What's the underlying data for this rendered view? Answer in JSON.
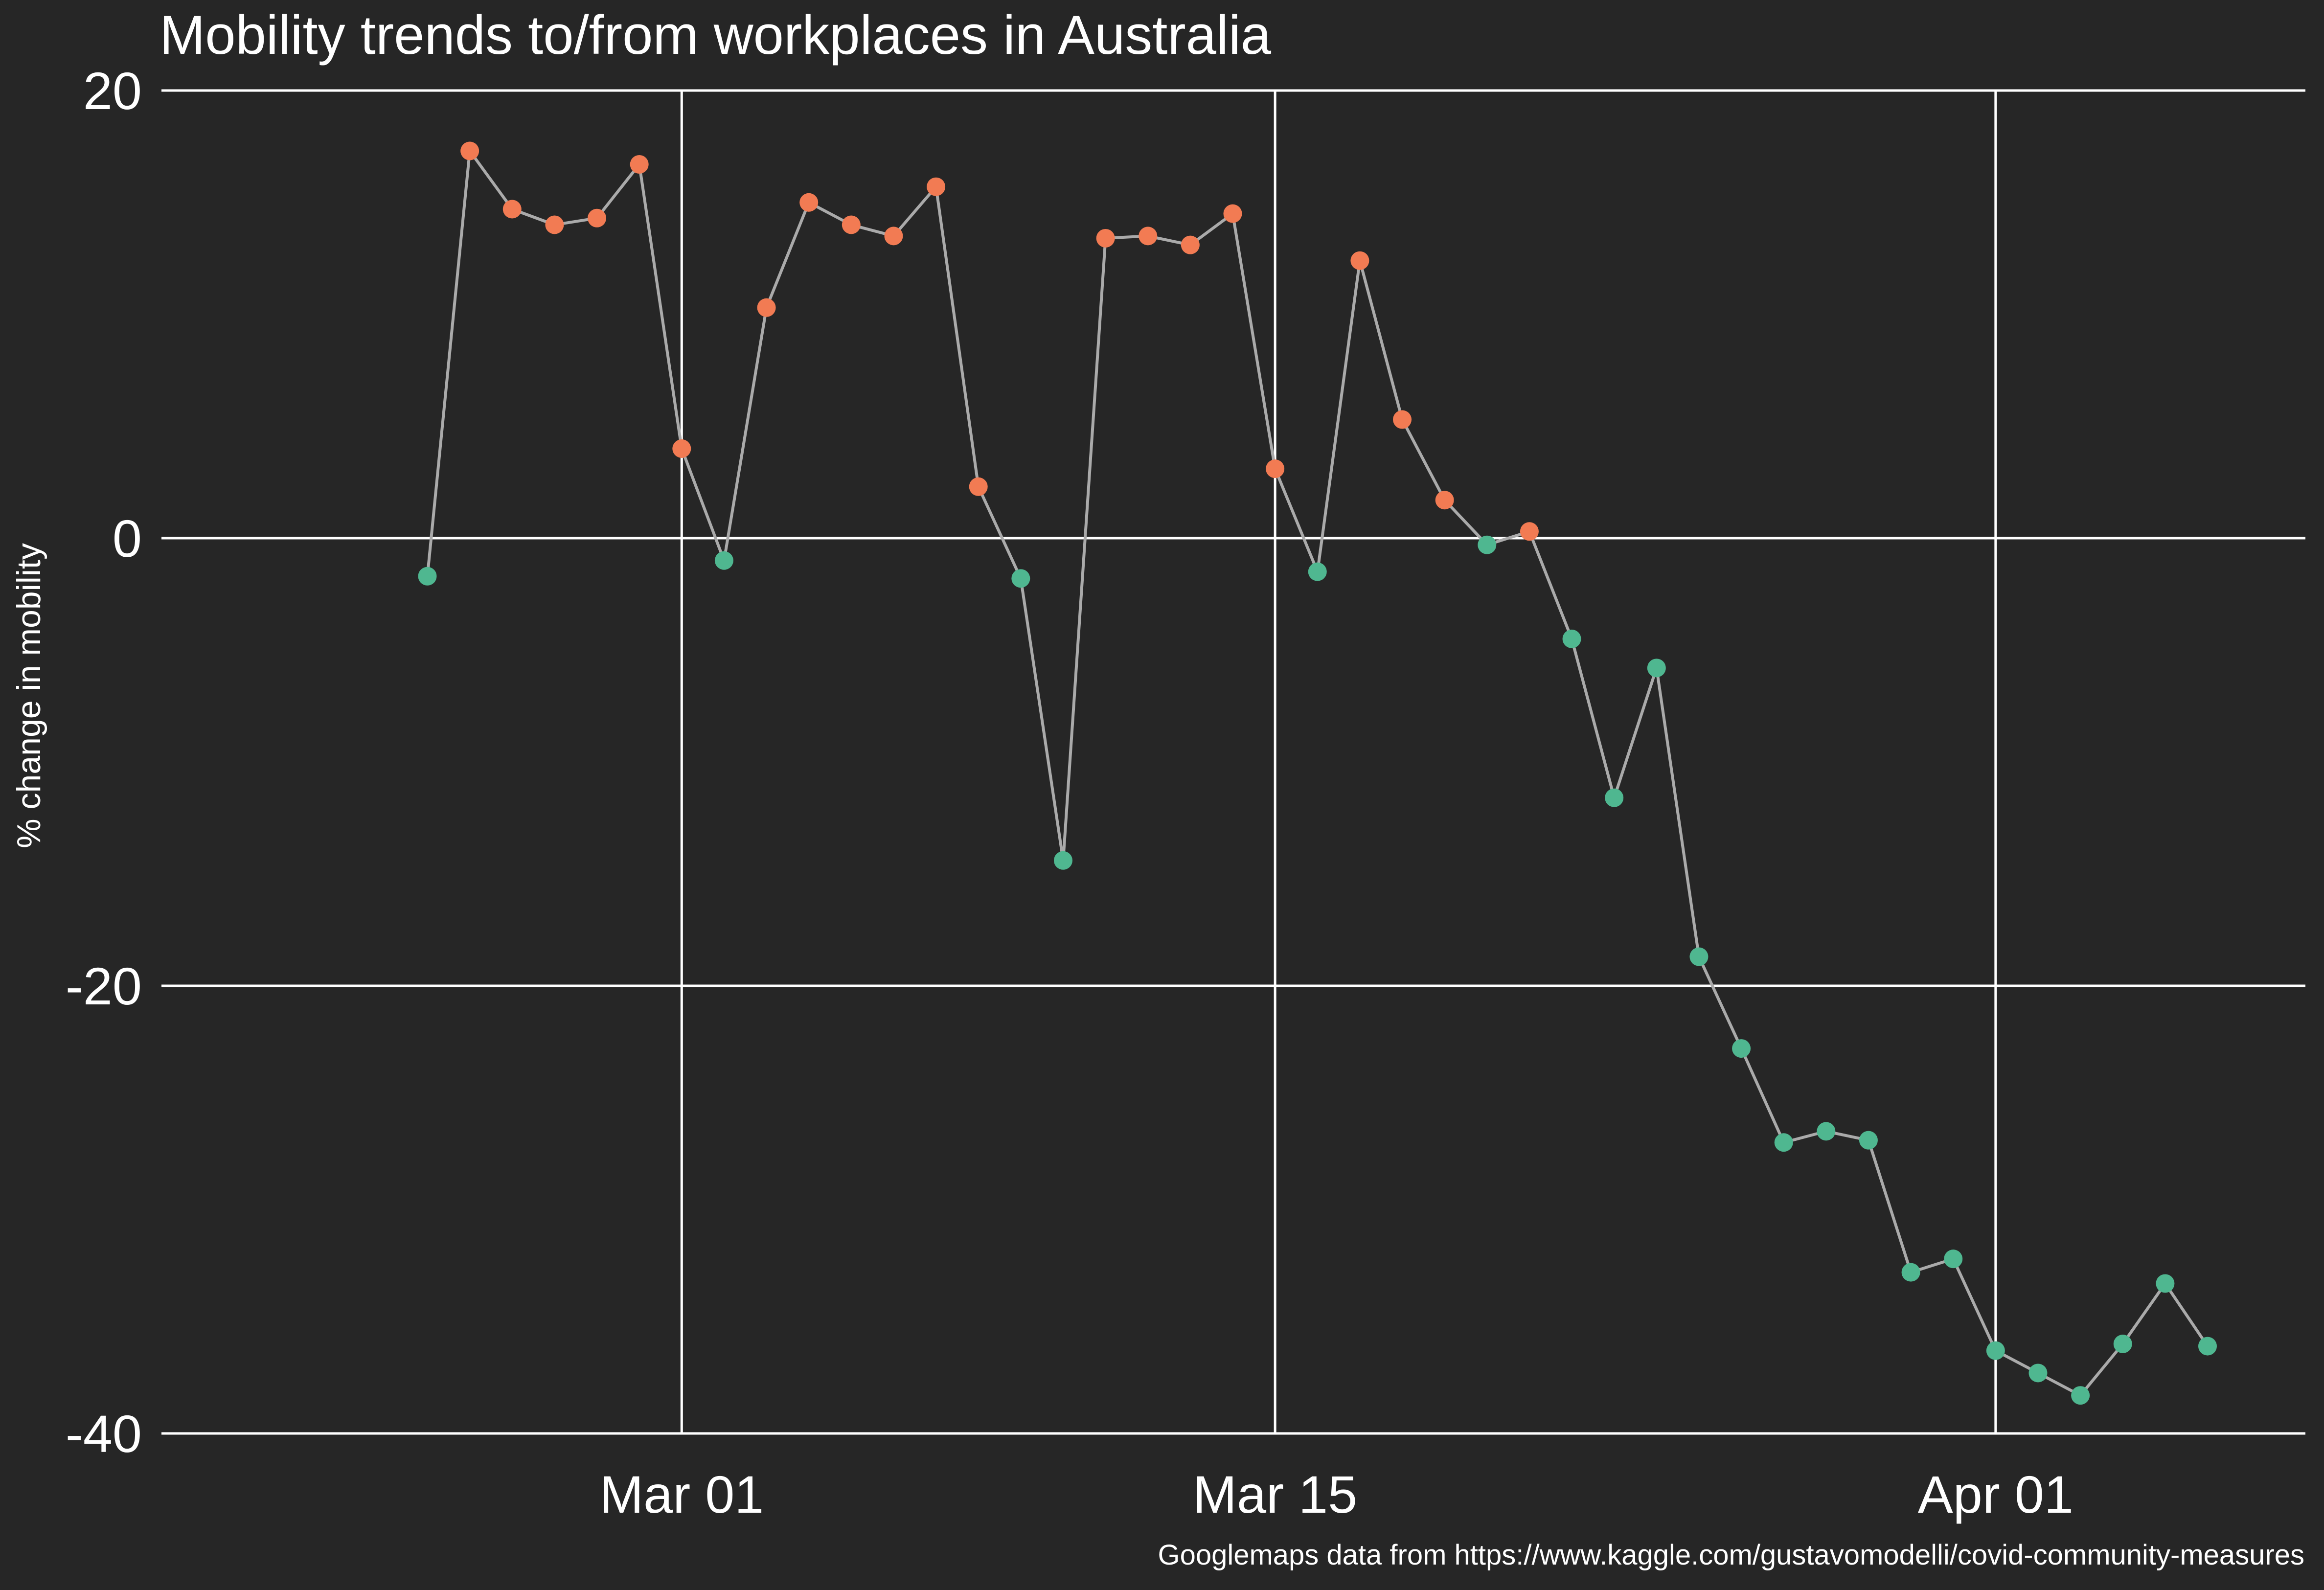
{
  "chart_data": {
    "type": "line",
    "title": "Mobility trends to/from workplaces in Australia",
    "xlabel": "",
    "ylabel": "% change in mobility",
    "caption": "Googlemaps data from https://www.kaggle.com/gustavomodelli/covid-community-measures",
    "ylim": [
      -40,
      20
    ],
    "xlim": [
      "2020-02-20",
      "2020-04-06"
    ],
    "y_ticks": [
      {
        "value": 20,
        "label": "20"
      },
      {
        "value": 0,
        "label": "0"
      },
      {
        "value": -20,
        "label": "-20"
      },
      {
        "value": -40,
        "label": "-40"
      }
    ],
    "x_ticks": [
      {
        "date": "2020-03-01",
        "label": "Mar 01"
      },
      {
        "date": "2020-03-15",
        "label": "Mar 15"
      },
      {
        "date": "2020-04-01",
        "label": "Apr 01"
      }
    ],
    "grid": true,
    "colors": {
      "background": "#262626",
      "grid": "#ffffff",
      "line": "#aaaaaa",
      "positive": "#f27b53",
      "negative": "#4fb790"
    },
    "series": [
      {
        "points": [
          {
            "x": "2020-02-24",
            "y": -1.7
          },
          {
            "x": "2020-02-25",
            "y": 17.3
          },
          {
            "x": "2020-02-26",
            "y": 14.7
          },
          {
            "x": "2020-02-27",
            "y": 14.0
          },
          {
            "x": "2020-02-28",
            "y": 14.3
          },
          {
            "x": "2020-02-29",
            "y": 16.7
          },
          {
            "x": "2020-03-01",
            "y": 4.0
          },
          {
            "x": "2020-03-02",
            "y": -1.0
          },
          {
            "x": "2020-03-03",
            "y": 10.3
          },
          {
            "x": "2020-03-04",
            "y": 15.0
          },
          {
            "x": "2020-03-05",
            "y": 14.0
          },
          {
            "x": "2020-03-06",
            "y": 13.5
          },
          {
            "x": "2020-03-07",
            "y": 15.7
          },
          {
            "x": "2020-03-08",
            "y": 2.3
          },
          {
            "x": "2020-03-09",
            "y": -1.8
          },
          {
            "x": "2020-03-10",
            "y": -14.4
          },
          {
            "x": "2020-03-11",
            "y": 13.4
          },
          {
            "x": "2020-03-12",
            "y": 13.5
          },
          {
            "x": "2020-03-13",
            "y": 13.1
          },
          {
            "x": "2020-03-14",
            "y": 14.5
          },
          {
            "x": "2020-03-15",
            "y": 3.1
          },
          {
            "x": "2020-03-16",
            "y": -1.5
          },
          {
            "x": "2020-03-17",
            "y": 12.4
          },
          {
            "x": "2020-03-18",
            "y": 5.3
          },
          {
            "x": "2020-03-19",
            "y": 1.7
          },
          {
            "x": "2020-03-20",
            "y": -0.3
          },
          {
            "x": "2020-03-21",
            "y": 0.3
          },
          {
            "x": "2020-03-22",
            "y": -4.5
          },
          {
            "x": "2020-03-23",
            "y": -11.6
          },
          {
            "x": "2020-03-24",
            "y": -5.8
          },
          {
            "x": "2020-03-25",
            "y": -18.7
          },
          {
            "x": "2020-03-26",
            "y": -22.8
          },
          {
            "x": "2020-03-27",
            "y": -27.0
          },
          {
            "x": "2020-03-28",
            "y": -26.5
          },
          {
            "x": "2020-03-29",
            "y": -26.9
          },
          {
            "x": "2020-03-30",
            "y": -32.8
          },
          {
            "x": "2020-03-31",
            "y": -32.2
          },
          {
            "x": "2020-04-01",
            "y": -36.3
          },
          {
            "x": "2020-04-02",
            "y": -37.3
          },
          {
            "x": "2020-04-03",
            "y": -38.3
          },
          {
            "x": "2020-04-04",
            "y": -36.0
          },
          {
            "x": "2020-04-05",
            "y": -33.3
          },
          {
            "x": "2020-04-06",
            "y": -36.1
          }
        ]
      }
    ]
  }
}
